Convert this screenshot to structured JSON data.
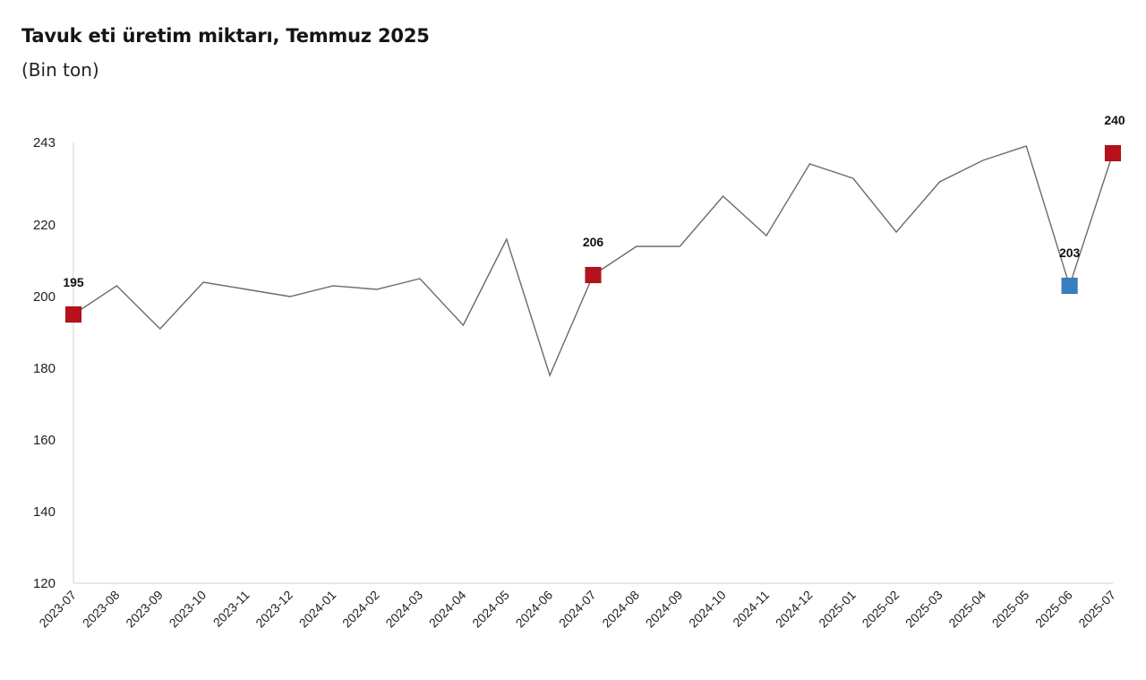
{
  "header": {
    "title": "Tavuk eti üretim miktarı, Temmuz 2025",
    "subtitle": "(Bin ton)"
  },
  "colors": {
    "line": "#6b6b6b",
    "highlight_red": "#b5121b",
    "highlight_blue": "#3a7dc0",
    "axis": "#d0d0d0"
  },
  "chart_data": {
    "type": "line",
    "title": "Tavuk eti üretim miktarı, Temmuz 2025",
    "subtitle": "(Bin ton)",
    "xlabel": "",
    "ylabel": "Bin ton",
    "ylim": [
      120,
      243
    ],
    "yticks": [
      120,
      140,
      160,
      180,
      200,
      220,
      243
    ],
    "grid": false,
    "legend": null,
    "categories": [
      "2023-07",
      "2023-08",
      "2023-09",
      "2023-10",
      "2023-11",
      "2023-12",
      "2024-01",
      "2024-02",
      "2024-03",
      "2024-04",
      "2024-05",
      "2024-06",
      "2024-07",
      "2024-08",
      "2024-09",
      "2024-10",
      "2024-11",
      "2024-12",
      "2025-01",
      "2025-02",
      "2025-03",
      "2025-04",
      "2025-05",
      "2025-06",
      "2025-07"
    ],
    "series": [
      {
        "name": "Tavuk eti üretim miktarı",
        "values": [
          195,
          203,
          191,
          204,
          202,
          200,
          203,
          202,
          205,
          192,
          216,
          178,
          206,
          214,
          214,
          228,
          217,
          237,
          233,
          218,
          232,
          238,
          242,
          203,
          240
        ]
      }
    ],
    "annotations": [
      {
        "category": "2023-07",
        "label": "195",
        "marker_color": "#b5121b"
      },
      {
        "category": "2024-07",
        "label": "206",
        "marker_color": "#b5121b"
      },
      {
        "category": "2025-06",
        "label": "203",
        "marker_color": "#3a7dc0"
      },
      {
        "category": "2025-07",
        "label": "240",
        "marker_color": "#b5121b"
      }
    ]
  }
}
